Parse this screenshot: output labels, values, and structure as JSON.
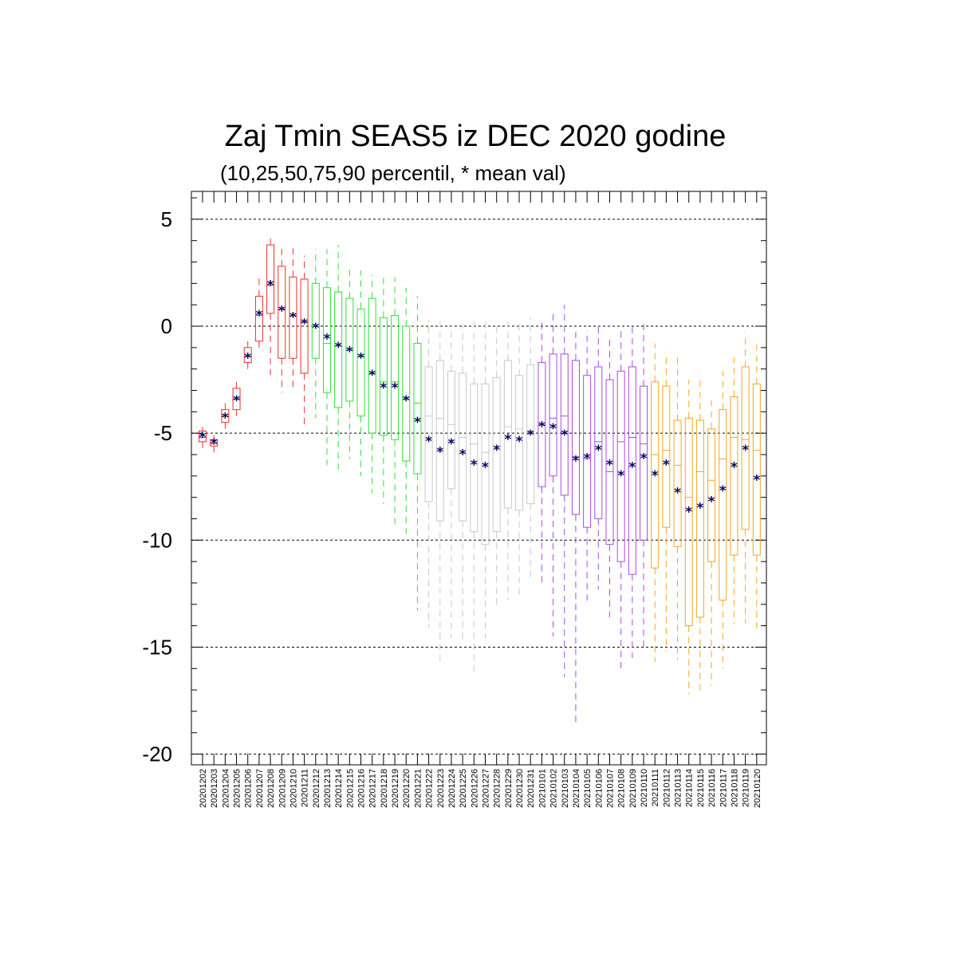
{
  "chart_data": {
    "type": "box",
    "title": "Zaj Tmin SEAS5 iz DEC 2020 godine",
    "subtitle": "(10,25,50,75,90 percentil, * mean val)",
    "ylim": [
      -20.5,
      6.3
    ],
    "yticks": [
      5,
      0,
      -5,
      -10,
      -15,
      -20
    ],
    "grid": "horizontal dashed at major ticks",
    "categories": [
      "20201202",
      "20201203",
      "20201204",
      "20201205",
      "20201206",
      "20201207",
      "20201208",
      "20201209",
      "20201210",
      "20201211",
      "20201212",
      "20201213",
      "20201214",
      "20201215",
      "20201216",
      "20201217",
      "20201218",
      "20201219",
      "20201220",
      "20201221",
      "20201222",
      "20201223",
      "20201224",
      "20201225",
      "20201226",
      "20201227",
      "20201228",
      "20201229",
      "20201230",
      "20201231",
      "20210101",
      "20210102",
      "20210103",
      "20210104",
      "20210105",
      "20210106",
      "20210107",
      "20210108",
      "20210109",
      "20210110",
      "20210111",
      "20210112",
      "20210113",
      "20210114",
      "20210115",
      "20210116",
      "20210117",
      "20210118",
      "20210119",
      "20210120"
    ],
    "colors": {
      "red": "#e8322f",
      "green": "#33e03a",
      "gray": "#c8c8c8",
      "purple": "#a64ce0",
      "orange": "#f5a623",
      "mean": "#000066"
    },
    "groups": [
      {
        "color": "red",
        "count": 10
      },
      {
        "color": "green",
        "count": 10
      },
      {
        "color": "gray",
        "count": 10
      },
      {
        "color": "purple",
        "count": 10
      },
      {
        "color": "orange",
        "count": 10
      }
    ],
    "series": [
      {
        "p10": [
          -5.8,
          -5.9,
          -4.9,
          -4.2,
          -2.2,
          -1.0,
          -2.3,
          -3.1,
          -3.0,
          -4.8,
          -4.3,
          -6.5,
          -6.9,
          -6.2,
          -7.0,
          -7.8,
          -8.3,
          -9.3,
          -9.7,
          -13.3,
          -14.1,
          -15.7,
          -14.6,
          -14.8,
          -16.2,
          -14.6,
          -13.1,
          -12.8,
          -12.7,
          -11.9,
          -12.0,
          -14.5,
          -16.4,
          -18.7,
          -13.0,
          -12.3,
          -13.6,
          -16.0,
          -15.5,
          -15.0,
          -15.7,
          -15.2,
          -15.6,
          -17.2,
          -17.2,
          -16.8,
          -16.0,
          -13.9,
          -13.9,
          -14.3
        ],
        "p25": [
          -5.4,
          -5.6,
          -4.5,
          -3.9,
          -1.7,
          -0.7,
          0.6,
          -1.5,
          -1.5,
          -2.2,
          -1.5,
          -3.1,
          -3.8,
          -3.5,
          -4.2,
          -5.0,
          -5.1,
          -5.3,
          -6.3,
          -6.9,
          -8.2,
          -9.1,
          -7.6,
          -9.1,
          -9.6,
          -10.2,
          -9.6,
          -8.5,
          -8.6,
          -8.3,
          -7.5,
          -7.0,
          -7.9,
          -8.8,
          -9.4,
          -9.0,
          -10.2,
          -11.0,
          -11.6,
          -10.0,
          -11.3,
          -9.4,
          -10.3,
          -14.0,
          -13.6,
          -11.0,
          -12.8,
          -10.7,
          -9.5,
          -10.7
        ],
        "p50": [
          -5.2,
          -5.5,
          -4.2,
          -3.4,
          -1.4,
          0.5,
          1.9,
          0.8,
          0.5,
          0.2,
          0.0,
          -0.8,
          -0.9,
          -1.1,
          -1.4,
          -2.2,
          -2.6,
          -2.6,
          -3.4,
          -3.6,
          -4.2,
          -4.3,
          -4.6,
          -5.2,
          -5.5,
          -5.9,
          -5.6,
          -4.7,
          -4.8,
          -4.9,
          -4.6,
          -4.3,
          -4.2,
          -6.1,
          -6.2,
          -5.4,
          -6.8,
          -5.4,
          -5.2,
          -5.5,
          -6.0,
          -5.8,
          -6.5,
          -8.0,
          -6.8,
          -7.2,
          -6.2,
          -5.2,
          -5.3,
          -5.8
        ],
        "p75": [
          -4.9,
          -5.3,
          -3.9,
          -2.9,
          -1.0,
          1.4,
          3.8,
          2.8,
          2.3,
          2.2,
          2.0,
          1.8,
          1.6,
          1.3,
          0.8,
          1.3,
          0.4,
          0.5,
          0.0,
          -0.8,
          -1.9,
          -1.6,
          -2.1,
          -2.2,
          -2.7,
          -2.7,
          -2.4,
          -1.6,
          -2.3,
          -1.8,
          -1.7,
          -1.3,
          -1.3,
          -1.6,
          -2.3,
          -1.9,
          -2.5,
          -2.1,
          -1.9,
          -2.8,
          -2.6,
          -2.8,
          -4.4,
          -4.3,
          -4.4,
          -4.8,
          -3.9,
          -3.3,
          -1.9,
          -2.7
        ],
        "p90": [
          -4.7,
          -5.1,
          -3.6,
          -2.5,
          -0.6,
          2.3,
          4.3,
          3.8,
          3.8,
          3.3,
          3.6,
          3.6,
          3.8,
          2.7,
          2.6,
          2.4,
          2.3,
          2.3,
          1.8,
          1.4,
          0.3,
          0.2,
          0.1,
          0.1,
          0.4,
          0.3,
          0.0,
          0.2,
          0.3,
          0.4,
          0.3,
          0.6,
          1.0,
          -0.2,
          -0.2,
          0.0,
          -0.5,
          -0.1,
          0.0,
          0.1,
          -0.8,
          -1.2,
          -1.4,
          -2.5,
          -2.3,
          -3.3,
          -2.1,
          -1.3,
          -0.3,
          -0.6
        ],
        "mean": [
          -5.1,
          -5.4,
          -4.2,
          -3.4,
          -1.4,
          0.6,
          2.0,
          0.8,
          0.5,
          0.2,
          0.0,
          -0.5,
          -0.9,
          -1.1,
          -1.4,
          -2.2,
          -2.8,
          -2.8,
          -3.4,
          -4.4,
          -5.3,
          -5.8,
          -5.4,
          -5.9,
          -6.4,
          -6.5,
          -5.7,
          -5.2,
          -5.3,
          -5.0,
          -4.6,
          -4.7,
          -5.0,
          -6.2,
          -6.1,
          -5.7,
          -6.4,
          -6.9,
          -6.5,
          -6.1,
          -6.9,
          -6.4,
          -7.7,
          -8.6,
          -8.4,
          -8.1,
          -7.6,
          -6.5,
          -5.7,
          -7.1
        ]
      }
    ]
  }
}
